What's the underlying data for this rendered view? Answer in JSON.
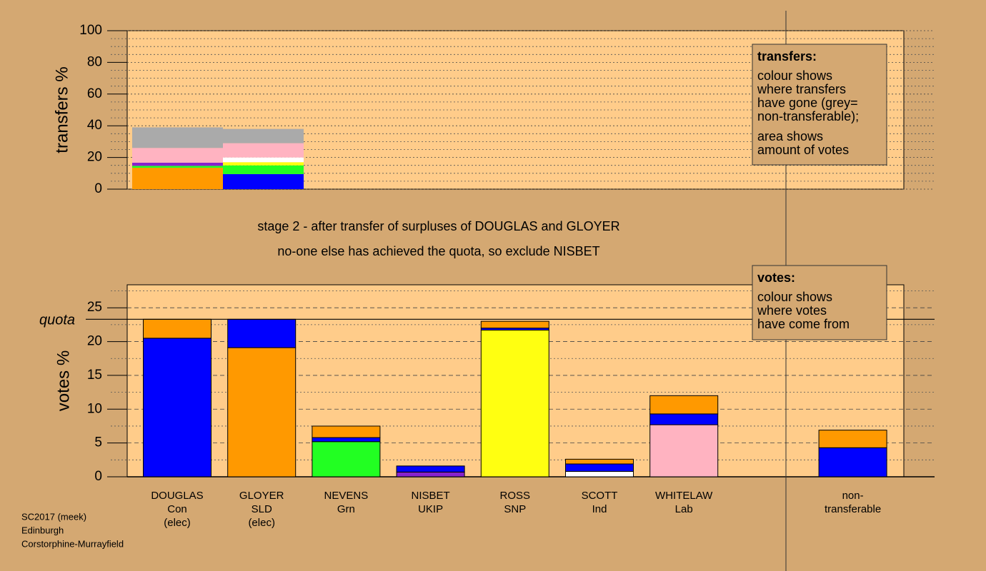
{
  "chart_data": [
    {
      "type": "stacked_bar",
      "ylabel": "transfers %",
      "ylim": [
        0,
        100
      ],
      "yticks": [
        0,
        20,
        40,
        60,
        80,
        100
      ],
      "grid": true,
      "bars": [
        {
          "segments": [
            {
              "color": "#ff9900",
              "value": 13.5
            },
            {
              "color": "#22ff22",
              "value": 1.2
            },
            {
              "color": "#8822cc",
              "value": 2
            },
            {
              "color": "#ffb3c1",
              "value": 9.3
            },
            {
              "color": "#aaaaaa",
              "value": 13
            }
          ]
        },
        {
          "segments": [
            {
              "color": "#0000ff",
              "value": 9.5
            },
            {
              "color": "#22ff22",
              "value": 5.5
            },
            {
              "color": "#ffff11",
              "value": 2
            },
            {
              "color": "#ffffff",
              "value": 3
            },
            {
              "color": "#ffb3c1",
              "value": 9
            },
            {
              "color": "#aaaaaa",
              "value": 9
            }
          ]
        }
      ]
    },
    {
      "type": "stacked_bar",
      "ylabel": "votes %",
      "ylim": [
        0,
        28.4
      ],
      "yticks": [
        0,
        5,
        10,
        15,
        20,
        25
      ],
      "grid": true,
      "quota": {
        "label": "quota",
        "value": 23.3
      },
      "categories": [
        [
          "DOUGLAS",
          "Con",
          "(elec)"
        ],
        [
          "GLOYER",
          "SLD",
          "(elec)"
        ],
        [
          "NEVENS",
          "Grn"
        ],
        [
          "NISBET",
          "UKIP"
        ],
        [
          "ROSS",
          "SNP"
        ],
        [
          "SCOTT",
          "Ind"
        ],
        [
          "WHITELAW",
          "Lab"
        ],
        null,
        [
          "non-",
          "transferable"
        ]
      ],
      "bars": [
        {
          "segments": [
            {
              "color": "#0000ff",
              "value": 20.5
            },
            {
              "color": "#ff9900",
              "value": 2.8
            }
          ]
        },
        {
          "segments": [
            {
              "color": "#ff9900",
              "value": 19.1
            },
            {
              "color": "#0000ff",
              "value": 4.2
            }
          ]
        },
        {
          "segments": [
            {
              "color": "#22ff22",
              "value": 5.2
            },
            {
              "color": "#0000ff",
              "value": 0.6
            },
            {
              "color": "#ff9900",
              "value": 1.7
            }
          ]
        },
        {
          "segments": [
            {
              "color": "#8822cc",
              "value": 0.7
            },
            {
              "color": "#0000ff",
              "value": 0.9
            }
          ]
        },
        {
          "segments": [
            {
              "color": "#ffff11",
              "value": 21.7
            },
            {
              "color": "#0000ff",
              "value": 0.3
            },
            {
              "color": "#ff9900",
              "value": 1.0
            }
          ]
        },
        {
          "segments": [
            {
              "color": "#ffffff",
              "value": 0.8
            },
            {
              "color": "#0000ff",
              "value": 1.1
            },
            {
              "color": "#ff9900",
              "value": 0.7
            }
          ]
        },
        {
          "segments": [
            {
              "color": "#ffb3c1",
              "value": 7.7
            },
            {
              "color": "#0000ff",
              "value": 1.6
            },
            {
              "color": "#ff9900",
              "value": 2.7
            }
          ]
        },
        null,
        {
          "segments": [
            {
              "color": "#0000ff",
              "value": 4.3
            },
            {
              "color": "#ff9900",
              "value": 2.6
            }
          ]
        }
      ]
    }
  ],
  "notes": [
    "stage 2 - after transfer of surpluses of DOUGLAS and GLOYER",
    "no-one else has achieved the quota, so exclude NISBET"
  ],
  "legends": [
    {
      "title": "transfers:",
      "paragraphs": [
        [
          "colour shows",
          "where transfers",
          "have gone (grey=",
          "non-transferable);"
        ],
        [
          "area shows",
          "amount of votes"
        ]
      ]
    },
    {
      "title": "votes:",
      "paragraphs": [
        [
          "colour shows",
          "where votes",
          "have come from"
        ]
      ]
    }
  ],
  "footer": [
    "SC2017 (meek)",
    "Edinburgh",
    "Corstorphine-Murrayfield"
  ]
}
